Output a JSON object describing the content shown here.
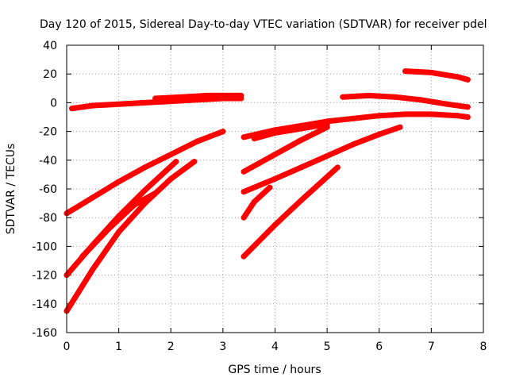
{
  "chart_data": {
    "type": "line",
    "title": "Day 120 of 2015, Sidereal Day-to-day VTEC variation (SDTVAR) for receiver pdel",
    "xlabel": "GPS time / hours",
    "ylabel": "SDTVAR / TECUs",
    "xlim": [
      0,
      8
    ],
    "ylim": [
      -160,
      40
    ],
    "xticks": [
      "0",
      "1",
      "2",
      "3",
      "4",
      "5",
      "6",
      "7",
      "8"
    ],
    "yticks": [
      "-160",
      "-140",
      "-120",
      "-100",
      "-80",
      "-60",
      "-40",
      "-20",
      "0",
      "20",
      "40"
    ],
    "grid": true,
    "legend": "none",
    "color": "#ff0000",
    "series": [
      {
        "x": [
          0.1,
          0.5,
          1.0,
          1.5,
          2.0,
          2.5,
          3.0,
          3.35
        ],
        "y": [
          -4,
          -2,
          -1,
          0,
          1,
          2,
          3,
          3
        ]
      },
      {
        "x": [
          1.7,
          2.2,
          2.7,
          3.0,
          3.35
        ],
        "y": [
          3,
          4,
          5,
          5,
          5
        ]
      },
      {
        "x": [
          0.0,
          0.5,
          1.0,
          1.5,
          2.0,
          2.5,
          3.0
        ],
        "y": [
          -77,
          -66,
          -55,
          -45,
          -36,
          -27,
          -20
        ]
      },
      {
        "x": [
          0.0,
          0.5,
          1.0,
          1.5,
          2.1
        ],
        "y": [
          -120,
          -99,
          -79,
          -61,
          -41
        ]
      },
      {
        "x": [
          0.0,
          0.5,
          1.0,
          1.5,
          2.0,
          2.45
        ],
        "y": [
          -145,
          -116,
          -90,
          -70,
          -53,
          -41
        ]
      },
      {
        "x": [
          0.3,
          0.8,
          1.3,
          1.7
        ],
        "y": [
          -107,
          -88,
          -71,
          -63
        ]
      },
      {
        "x": [
          3.4,
          4.0,
          4.5,
          5.0,
          5.5,
          6.0,
          6.5,
          7.0,
          7.5,
          7.7
        ],
        "y": [
          -24,
          -19,
          -16,
          -13,
          -11,
          -9,
          -8,
          -8,
          -9,
          -10
        ]
      },
      {
        "x": [
          3.6,
          4.0,
          4.5,
          5.0
        ],
        "y": [
          -25,
          -21,
          -18,
          -15
        ]
      },
      {
        "x": [
          3.4,
          4.0,
          4.5,
          5.0
        ],
        "y": [
          -48,
          -36,
          -26,
          -17
        ]
      },
      {
        "x": [
          3.4,
          4.0,
          4.5,
          5.0,
          5.5,
          6.0,
          6.4
        ],
        "y": [
          -62,
          -53,
          -45,
          -37,
          -29,
          -22,
          -17
        ]
      },
      {
        "x": [
          3.4,
          3.6,
          3.9
        ],
        "y": [
          -80,
          -69,
          -59
        ]
      },
      {
        "x": [
          3.4,
          4.0,
          4.5,
          5.2
        ],
        "y": [
          -107,
          -85,
          -68,
          -45
        ]
      },
      {
        "x": [
          5.3,
          5.8,
          6.3,
          6.8,
          7.3,
          7.7
        ],
        "y": [
          4,
          5,
          4,
          2,
          -1,
          -3
        ]
      },
      {
        "x": [
          6.5,
          7.0,
          7.5,
          7.7
        ],
        "y": [
          22,
          21,
          18,
          16
        ]
      }
    ]
  }
}
